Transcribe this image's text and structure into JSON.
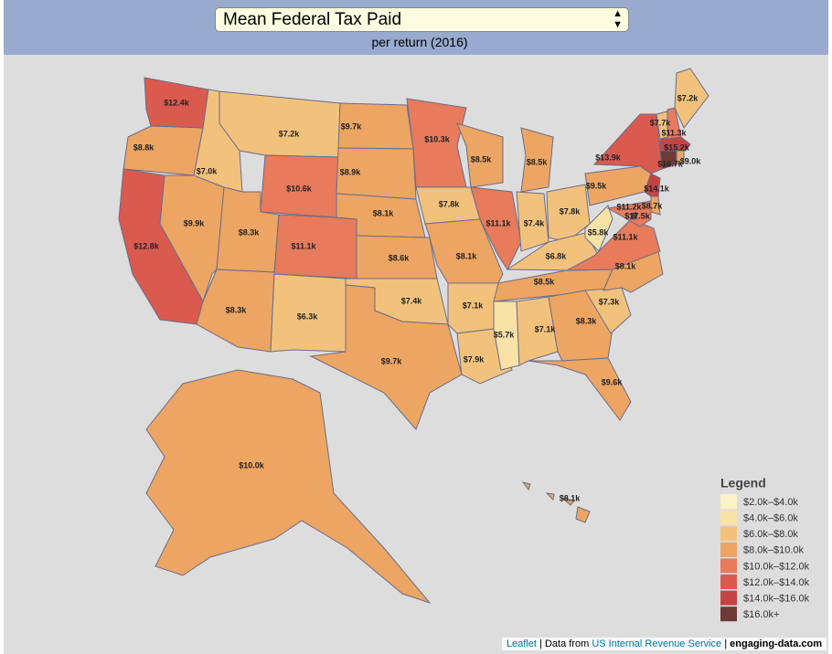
{
  "header": {
    "metric": "Mean Federal Tax Paid",
    "subtitle": "per return (2016)"
  },
  "regions": [
    {
      "label": "$12.4k",
      "color": "#da5a50"
    },
    {
      "label": "$8.8k",
      "color": "#eca562"
    },
    {
      "label": "$12.8k",
      "color": "#da5a50"
    },
    {
      "label": "$9.9k",
      "color": "#eca562"
    },
    {
      "label": "$7.0k",
      "color": "#f2c27c"
    },
    {
      "label": "$7.2k",
      "color": "#f2c27c"
    },
    {
      "label": "$10.6k",
      "color": "#e77b5b"
    },
    {
      "label": "$8.3k",
      "color": "#eca562"
    },
    {
      "label": "$8.3k",
      "color": "#eca562"
    },
    {
      "label": "$11.1k",
      "color": "#e77b5b"
    },
    {
      "label": "$6.3k",
      "color": "#f2c27c"
    },
    {
      "label": "$9.7k",
      "color": "#eca562"
    },
    {
      "label": "$8.9k",
      "color": "#eca562"
    },
    {
      "label": "$8.1k",
      "color": "#eca562"
    },
    {
      "label": "$8.6k",
      "color": "#eca562"
    },
    {
      "label": "$7.4k",
      "color": "#f2c27c"
    },
    {
      "label": "$9.7k",
      "color": "#eca562"
    },
    {
      "label": "$10.3k",
      "color": "#e77b5b"
    },
    {
      "label": "$7.8k",
      "color": "#f2c27c"
    },
    {
      "label": "$8.1k",
      "color": "#eca562"
    },
    {
      "label": "$7.1k",
      "color": "#f2c27c"
    },
    {
      "label": "$7.9k",
      "color": "#f2c27c"
    },
    {
      "label": "$8.5k",
      "color": "#eca562"
    },
    {
      "label": "$11.1k",
      "color": "#e77b5b"
    },
    {
      "label": "$8.5k",
      "color": "#eca562"
    },
    {
      "label": "$7.4k",
      "color": "#f2c27c"
    },
    {
      "label": "$7.8k",
      "color": "#f2c27c"
    },
    {
      "label": "$6.8k",
      "color": "#f2c27c"
    },
    {
      "label": "$8.5k",
      "color": "#eca562"
    },
    {
      "label": "$5.7k",
      "color": "#f8e2a6"
    },
    {
      "label": "$7.1k",
      "color": "#f2c27c"
    },
    {
      "label": "$8.3k",
      "color": "#eca562"
    },
    {
      "label": "$9.6k",
      "color": "#eca562"
    },
    {
      "label": "$7.3k",
      "color": "#f2c27c"
    },
    {
      "label": "$8.1k",
      "color": "#eca562"
    },
    {
      "label": "$11.1k",
      "color": "#e77b5b"
    },
    {
      "label": "$5.8k",
      "color": "#f8e2a6"
    },
    {
      "label": "$9.5k",
      "color": "#eca562"
    },
    {
      "label": "$13.9k",
      "color": "#da5a50"
    },
    {
      "label": "$11.2k",
      "color": "#e77b5b"
    },
    {
      "label": "$17.5k",
      "color": "#6e3a36"
    },
    {
      "label": "$8.7k",
      "color": "#eca562"
    },
    {
      "label": "$14.1k",
      "color": "#c44444"
    },
    {
      "label": "$16.7k",
      "color": "#6e3a36"
    },
    {
      "label": "$15.2k",
      "color": "#c44444"
    },
    {
      "label": "$9.0k",
      "color": "#eca562"
    },
    {
      "label": "$7.7k",
      "color": "#f2c27c"
    },
    {
      "label": "$11.3k",
      "color": "#e77b5b"
    },
    {
      "label": "$7.2k",
      "color": "#f2c27c"
    },
    {
      "label": "$10.0k",
      "color": "#eca562"
    },
    {
      "label": "$8.1k",
      "color": "#eca562"
    }
  ],
  "legend": {
    "title": "Legend",
    "items": [
      {
        "label": "$2.0k–$4.0k",
        "color": "#fdf1c6"
      },
      {
        "label": "$4.0k–$6.0k",
        "color": "#f8e2a6"
      },
      {
        "label": "$6.0k–$8.0k",
        "color": "#f2c27c"
      },
      {
        "label": "$8.0k–$10.0k",
        "color": "#eca562"
      },
      {
        "label": "$10.0k–$12.0k",
        "color": "#e77b5b"
      },
      {
        "label": "$12.0k–$14.0k",
        "color": "#da5a50"
      },
      {
        "label": "$14.0k–$16.0k",
        "color": "#c44444"
      },
      {
        "label": "$16.0k+",
        "color": "#6e3a36"
      }
    ]
  },
  "attribution": {
    "library": "Leaflet",
    "source_prefix": "Data from",
    "source": "US Internal Revenue Service",
    "site": "engaging-data.com"
  }
}
